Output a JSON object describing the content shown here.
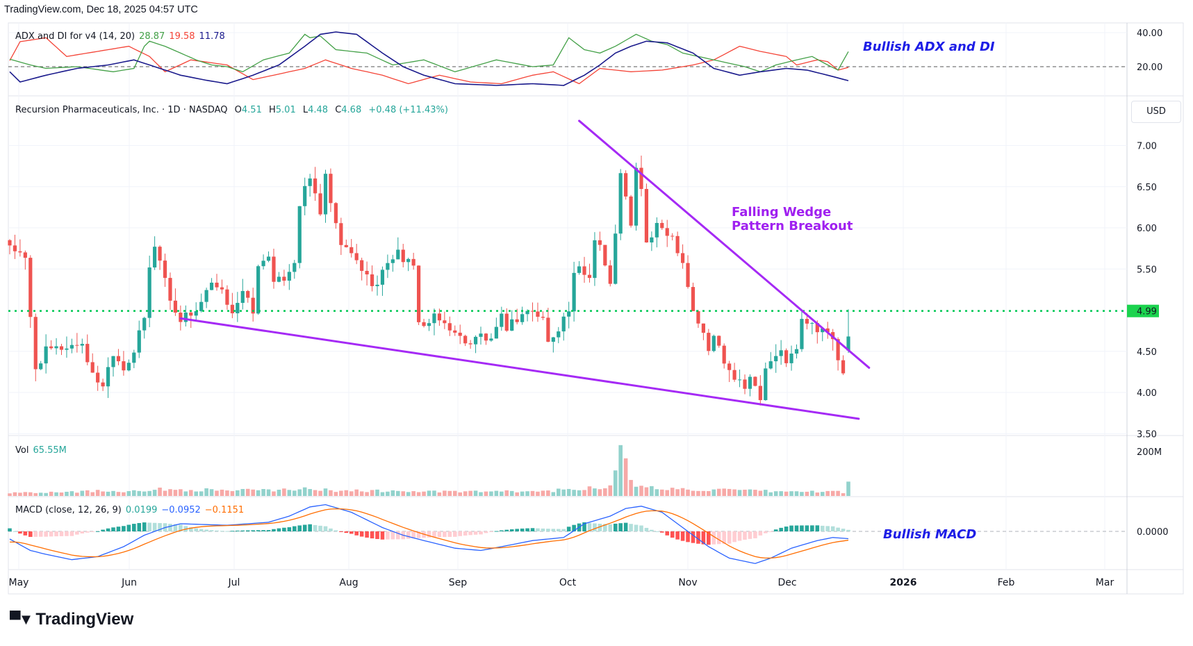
{
  "header": "TradingView.com, Dec 18, 2025 04:57 UTC",
  "logo": "TradingView",
  "colors": {
    "up": "#26a69a",
    "down": "#ef5350",
    "plus_di": "#43a047",
    "minus_di": "#f44336",
    "adx": "#1a1a8c",
    "macd": "#2962ff",
    "signal": "#ff6d00",
    "wedge": "#a52af5",
    "level": "#00c853"
  },
  "adx": {
    "title": "ADX and DI for v4 (14, 20)",
    "plus_di": "28.87",
    "minus_di": "19.58",
    "adx": "11.78",
    "ticks": [
      "40.00",
      "20.00"
    ],
    "annotation": "Bullish ADX and DI"
  },
  "price": {
    "title": "Recursion Pharmaceuticals, Inc. · 1D · NASDAQ",
    "o_label": "O",
    "o": "4.51",
    "h_label": "H",
    "h": "5.01",
    "l_label": "L",
    "l": "4.48",
    "c_label": "C",
    "c": "4.68",
    "change": "+0.48 (+11.43%)",
    "currency": "USD",
    "level": "4.99",
    "ticks": [
      "7.00",
      "6.50",
      "6.00",
      "5.50",
      "4.50",
      "4.00",
      "3.50"
    ],
    "annotation_line1": "Falling Wedge",
    "annotation_line2": "Pattern Breakout"
  },
  "volume": {
    "title": "Vol",
    "value": "65.55M",
    "tick": "200M"
  },
  "macd": {
    "title": "MACD (close, 12, 26, 9)",
    "hist": "0.0199",
    "macd": "−0.0952",
    "signal": "−0.1151",
    "tick": "0.0000",
    "annotation": "Bullish MACD"
  },
  "time_axis": [
    "May",
    "Jun",
    "Jul",
    "Aug",
    "Sep",
    "Oct",
    "Nov",
    "Dec",
    "2026",
    "Feb",
    "Mar"
  ],
  "chart_data": {
    "type": "candlestick",
    "bars": 163,
    "last_ohlc": [
      4.51,
      5.01,
      4.48,
      4.68
    ],
    "price_path": [
      [
        0,
        5.8
      ],
      [
        3,
        5.6
      ],
      [
        4,
        4.9
      ],
      [
        5,
        4.3
      ],
      [
        7,
        4.5
      ],
      [
        14,
        4.6
      ],
      [
        16,
        4.2
      ],
      [
        18,
        4.1
      ],
      [
        20,
        4.5
      ],
      [
        22,
        4.3
      ],
      [
        24,
        4.5
      ],
      [
        26,
        4.9
      ],
      [
        27,
        5.5
      ],
      [
        28,
        5.8
      ],
      [
        30,
        5.4
      ],
      [
        31,
        5.1
      ],
      [
        33,
        4.9
      ],
      [
        36,
        5.0
      ],
      [
        39,
        5.3
      ],
      [
        41,
        5.2
      ],
      [
        43,
        5.0
      ],
      [
        45,
        5.2
      ],
      [
        47,
        5.0
      ],
      [
        48,
        5.5
      ],
      [
        50,
        5.7
      ],
      [
        51,
        5.3
      ],
      [
        53,
        5.4
      ],
      [
        55,
        5.6
      ],
      [
        56,
        6.3
      ],
      [
        58,
        6.6
      ],
      [
        59,
        6.4
      ],
      [
        60,
        6.2
      ],
      [
        61,
        6.6
      ],
      [
        63,
        6.0
      ],
      [
        64,
        5.8
      ],
      [
        67,
        5.6
      ],
      [
        69,
        5.4
      ],
      [
        71,
        5.3
      ],
      [
        73,
        5.6
      ],
      [
        75,
        5.7
      ],
      [
        78,
        5.5
      ],
      [
        79,
        4.9
      ],
      [
        80,
        4.8
      ],
      [
        82,
        4.9
      ],
      [
        85,
        4.8
      ],
      [
        86,
        4.7
      ],
      [
        89,
        4.6
      ],
      [
        91,
        4.7
      ],
      [
        93,
        4.6
      ],
      [
        95,
        4.9
      ],
      [
        96,
        4.8
      ],
      [
        98,
        4.9
      ],
      [
        100,
        5.0
      ],
      [
        103,
        4.9
      ],
      [
        104,
        4.6
      ],
      [
        106,
        4.8
      ],
      [
        108,
        5.0
      ],
      [
        109,
        5.4
      ],
      [
        110,
        5.5
      ],
      [
        112,
        5.4
      ],
      [
        113,
        5.9
      ],
      [
        114,
        5.8
      ],
      [
        116,
        5.3
      ],
      [
        117,
        5.9
      ],
      [
        118,
        6.7
      ],
      [
        120,
        6.0
      ],
      [
        121,
        6.7
      ],
      [
        122,
        6.5
      ],
      [
        123,
        5.8
      ],
      [
        125,
        6.0
      ],
      [
        126,
        6.0
      ],
      [
        128,
        5.9
      ],
      [
        130,
        5.6
      ],
      [
        131,
        5.3
      ],
      [
        132,
        5.0
      ],
      [
        134,
        4.7
      ],
      [
        135,
        4.5
      ],
      [
        136,
        4.7
      ],
      [
        138,
        4.4
      ],
      [
        139,
        4.3
      ],
      [
        140,
        4.2
      ],
      [
        142,
        4.1
      ],
      [
        143,
        4.2
      ],
      [
        145,
        3.9
      ],
      [
        146,
        4.3
      ],
      [
        148,
        4.4
      ],
      [
        149,
        4.5
      ],
      [
        150,
        4.4
      ],
      [
        152,
        4.5
      ],
      [
        153,
        4.9
      ],
      [
        154,
        4.8
      ],
      [
        155,
        4.9
      ],
      [
        156,
        4.75
      ],
      [
        157,
        4.8
      ],
      [
        159,
        4.6
      ],
      [
        160,
        4.4
      ],
      [
        161,
        4.2
      ],
      [
        162,
        4.68
      ]
    ],
    "volume_path": [
      [
        0,
        15
      ],
      [
        10,
        20
      ],
      [
        25,
        25
      ],
      [
        28,
        30
      ],
      [
        50,
        25
      ],
      [
        56,
        35
      ],
      [
        58,
        28
      ],
      [
        80,
        20
      ],
      [
        100,
        20
      ],
      [
        110,
        30
      ],
      [
        113,
        45
      ],
      [
        116,
        40
      ],
      [
        117,
        110
      ],
      [
        118,
        230
      ],
      [
        119,
        140
      ],
      [
        120,
        60
      ],
      [
        122,
        40
      ],
      [
        125,
        35
      ],
      [
        140,
        25
      ],
      [
        150,
        20
      ],
      [
        160,
        20
      ],
      [
        161,
        18
      ],
      [
        162,
        65.55
      ]
    ],
    "plus_di": [
      [
        0,
        24.4
      ],
      [
        4,
        21
      ],
      [
        7,
        19
      ],
      [
        13,
        20
      ],
      [
        20,
        17
      ],
      [
        24,
        19
      ],
      [
        26,
        32
      ],
      [
        27,
        35
      ],
      [
        30,
        32
      ],
      [
        33,
        28
      ],
      [
        36,
        24
      ],
      [
        39,
        21
      ],
      [
        42,
        20
      ],
      [
        45,
        17
      ],
      [
        49,
        24
      ],
      [
        54,
        28
      ],
      [
        57,
        39
      ],
      [
        58,
        37
      ],
      [
        60,
        38
      ],
      [
        63,
        30
      ],
      [
        69,
        28
      ],
      [
        74,
        21
      ],
      [
        80,
        24
      ],
      [
        86,
        17
      ],
      [
        94,
        24
      ],
      [
        101,
        20
      ],
      [
        105,
        21
      ],
      [
        108,
        37
      ],
      [
        111,
        30
      ],
      [
        114,
        28
      ],
      [
        117,
        32
      ],
      [
        121,
        39
      ],
      [
        124,
        35
      ],
      [
        127,
        33
      ],
      [
        130,
        28
      ],
      [
        136,
        24
      ],
      [
        142,
        20
      ],
      [
        145,
        17
      ],
      [
        148,
        21
      ],
      [
        152,
        24
      ],
      [
        155,
        26
      ],
      [
        158,
        21
      ],
      [
        160,
        18
      ],
      [
        162,
        28.87
      ]
    ],
    "minus_di": [
      [
        0,
        23.6
      ],
      [
        2,
        34.7
      ],
      [
        7,
        37
      ],
      [
        11,
        26
      ],
      [
        17,
        29
      ],
      [
        23,
        32
      ],
      [
        27,
        26
      ],
      [
        30,
        17
      ],
      [
        35,
        24
      ],
      [
        42,
        21
      ],
      [
        47,
        12.4
      ],
      [
        51,
        15
      ],
      [
        57,
        19
      ],
      [
        61,
        24
      ],
      [
        66,
        19
      ],
      [
        72,
        15
      ],
      [
        77,
        10
      ],
      [
        83,
        15
      ],
      [
        89,
        11
      ],
      [
        95,
        10
      ],
      [
        101,
        15
      ],
      [
        105,
        17
      ],
      [
        110,
        10
      ],
      [
        114,
        19
      ],
      [
        120,
        17
      ],
      [
        126,
        18
      ],
      [
        132,
        21
      ],
      [
        136,
        24
      ],
      [
        141,
        32
      ],
      [
        145,
        29
      ],
      [
        150,
        26
      ],
      [
        152,
        21
      ],
      [
        156,
        24
      ],
      [
        158,
        23
      ],
      [
        160,
        18
      ],
      [
        162,
        19.58
      ]
    ],
    "adx_line": [
      [
        0,
        17
      ],
      [
        2,
        11
      ],
      [
        7,
        15
      ],
      [
        13,
        19
      ],
      [
        19,
        21
      ],
      [
        24,
        24
      ],
      [
        29,
        19
      ],
      [
        33,
        15
      ],
      [
        38,
        12
      ],
      [
        42,
        10
      ],
      [
        47,
        15
      ],
      [
        52,
        21
      ],
      [
        57,
        32
      ],
      [
        60,
        39
      ],
      [
        63,
        40.4
      ],
      [
        67,
        39
      ],
      [
        72,
        28
      ],
      [
        76,
        20
      ],
      [
        80,
        15
      ],
      [
        86,
        10
      ],
      [
        94,
        9
      ],
      [
        101,
        10
      ],
      [
        107,
        9
      ],
      [
        111,
        15
      ],
      [
        114,
        21
      ],
      [
        117,
        28
      ],
      [
        120,
        32
      ],
      [
        123,
        35
      ],
      [
        127,
        34
      ],
      [
        132,
        28
      ],
      [
        136,
        19
      ],
      [
        141,
        15
      ],
      [
        145,
        17
      ],
      [
        150,
        19
      ],
      [
        154,
        18
      ],
      [
        158,
        15
      ],
      [
        162,
        11.78
      ]
    ],
    "macd_path": [
      [
        0,
        -0.1
      ],
      [
        4,
        -0.25
      ],
      [
        7,
        -0.3
      ],
      [
        12,
        -0.37
      ],
      [
        17,
        -0.33
      ],
      [
        22,
        -0.2
      ],
      [
        26,
        -0.05
      ],
      [
        30,
        0.05
      ],
      [
        33,
        0.1
      ],
      [
        42,
        0.08
      ],
      [
        50,
        0.12
      ],
      [
        54,
        0.2
      ],
      [
        58,
        0.32
      ],
      [
        61,
        0.35
      ],
      [
        66,
        0.25
      ],
      [
        72,
        0.05
      ],
      [
        76,
        -0.05
      ],
      [
        80,
        -0.12
      ],
      [
        86,
        -0.22
      ],
      [
        91,
        -0.25
      ],
      [
        95,
        -0.2
      ],
      [
        101,
        -0.12
      ],
      [
        107,
        -0.08
      ],
      [
        111,
        0.1
      ],
      [
        116,
        0.2
      ],
      [
        119,
        0.3
      ],
      [
        122,
        0.33
      ],
      [
        126,
        0.25
      ],
      [
        130,
        0.05
      ],
      [
        135,
        -0.2
      ],
      [
        139,
        -0.35
      ],
      [
        144,
        -0.42
      ],
      [
        147,
        -0.35
      ],
      [
        151,
        -0.22
      ],
      [
        156,
        -0.12
      ],
      [
        159,
        -0.08
      ],
      [
        162,
        -0.0952
      ]
    ],
    "wedge_upper": [
      [
        110,
        7.3
      ],
      [
        166,
        4.3
      ]
    ],
    "wedge_lower": [
      [
        33,
        4.9
      ],
      [
        164,
        3.68
      ]
    ],
    "ylim": [
      3.5,
      7.4
    ]
  }
}
